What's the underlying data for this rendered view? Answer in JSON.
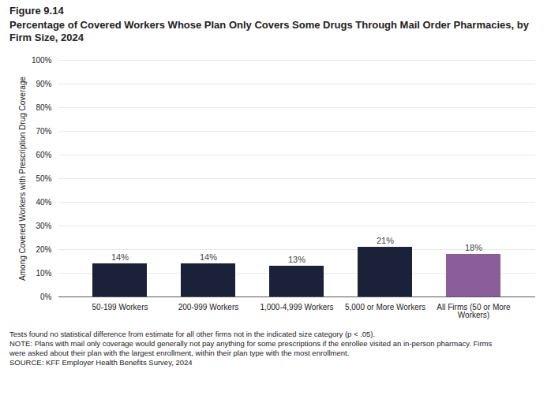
{
  "chart_data": {
    "type": "bar",
    "subtitle": "Figure 9.14",
    "title": "Percentage of Covered Workers Whose Plan Only Covers Some Drugs Through Mail Order Pharmacies, by Firm Size, 2024",
    "ylabel": "Among Covered Workers with Prescription Drug Coverage",
    "categories": [
      "50-199 Workers",
      "200-999 Workers",
      "1,000-4,999 Workers",
      "5,000 or More Workers",
      "All Firms (50 or More\nWorkers)"
    ],
    "values": [
      14,
      14,
      13,
      21,
      18
    ],
    "value_labels": [
      "14%",
      "14%",
      "13%",
      "21%",
      "18%"
    ],
    "data_labels": true,
    "colors": [
      "#1a2138",
      "#1a2138",
      "#1a2138",
      "#1a2138",
      "#8b5e9b"
    ],
    "ylim": [
      0,
      100
    ],
    "yticks": [
      {
        "value": 0,
        "label": "0%"
      },
      {
        "value": 10,
        "label": "10%"
      },
      {
        "value": 20,
        "label": "20%"
      },
      {
        "value": 30,
        "label": "30%"
      },
      {
        "value": 40,
        "label": "40%"
      },
      {
        "value": 50,
        "label": "50%"
      },
      {
        "value": 60,
        "label": "60%"
      },
      {
        "value": 70,
        "label": "70%"
      },
      {
        "value": 80,
        "label": "80%"
      },
      {
        "value": 90,
        "label": "90%"
      },
      {
        "value": 100,
        "label": "100%"
      }
    ],
    "grid": true,
    "annotations": [
      "Tests found no statistical difference from estimate for all other firms not in the indicated size category (p < .05).",
      "NOTE: Plans with mail only coverage would generally not pay anything for some prescriptions if the enrollee visited an in-person pharmacy.  Firms",
      "were asked about their plan with the largest enrollment, within their plan type with the most enrollment.",
      "SOURCE: KFF Employer Health Benefits Survey, 2024"
    ]
  }
}
